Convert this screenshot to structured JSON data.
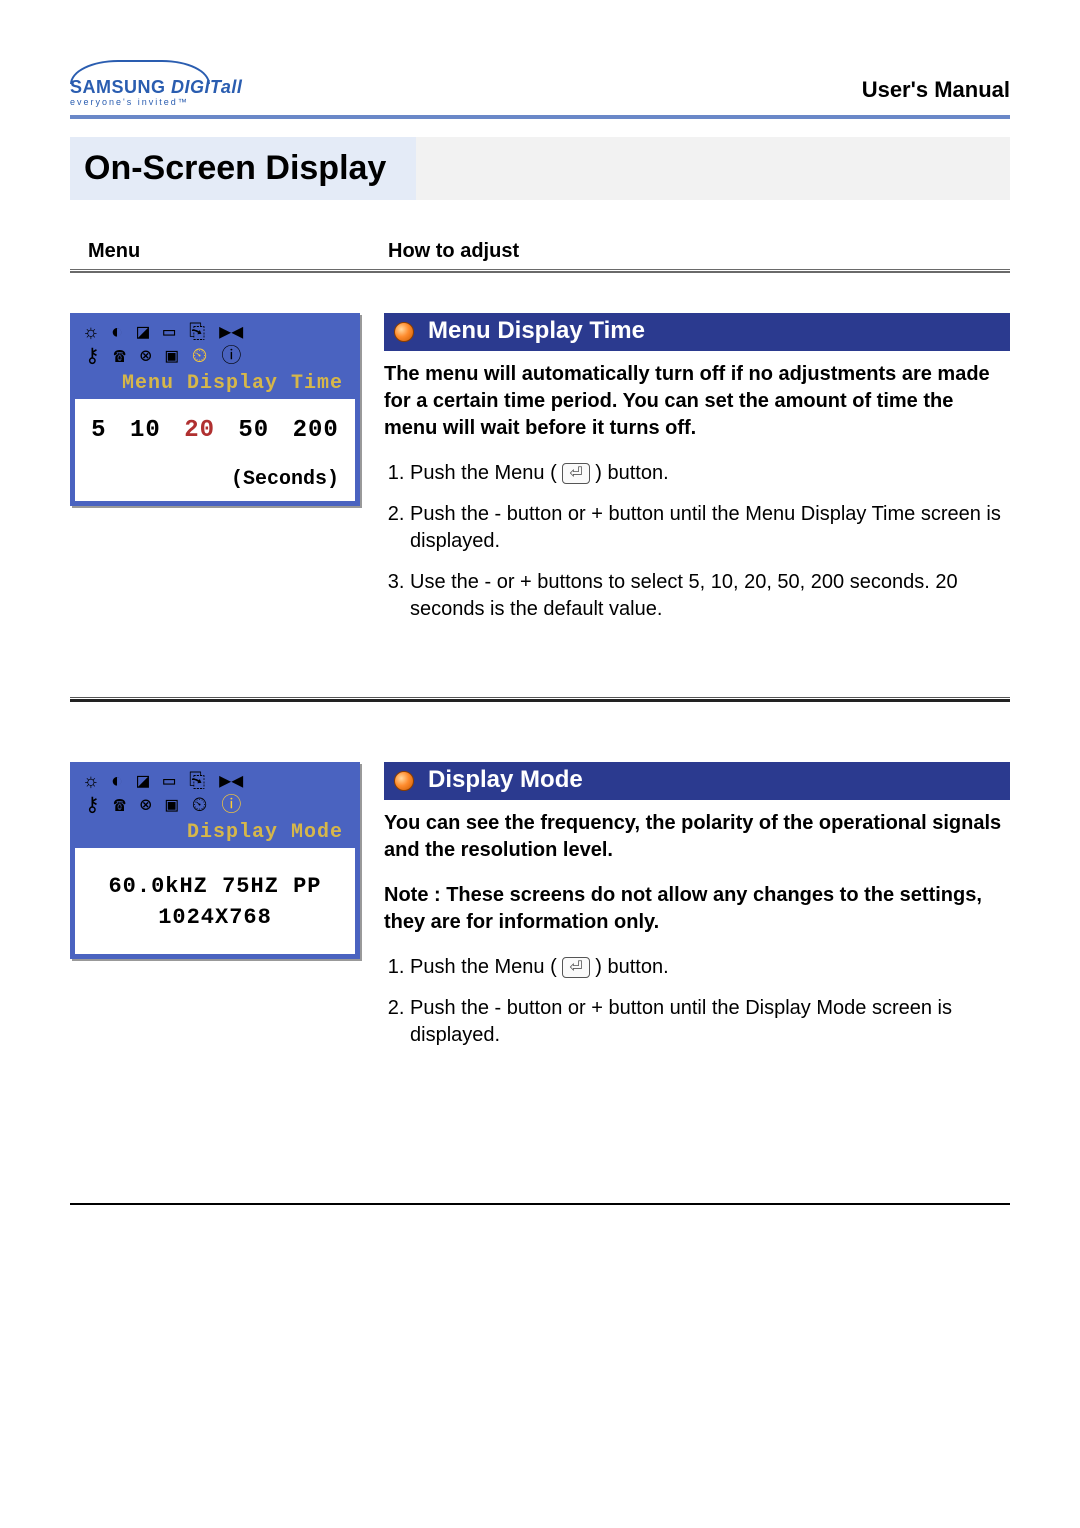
{
  "brand": {
    "name_main": "SAMSUNG ",
    "name_suffix": "DIGITall",
    "tagline": "everyone's invited™"
  },
  "manual_label": "User's Manual",
  "page_title": "On-Screen Display",
  "column_headers": {
    "menu": "Menu",
    "howto": "How to adjust"
  },
  "colors": {
    "accent_blue": "#2b3a8f",
    "osd_blue": "#4a63c0",
    "osd_title": "#d6b74a",
    "selected_icon": "#ffcc33",
    "value_highlight": "#b03030",
    "header_line": "#6a88c8",
    "title_bg": "#e4ebf7",
    "page_title_strip": "#f2f2f2"
  },
  "osd_icons_row1": [
    "☼",
    "◐",
    "◪",
    "▭",
    "⎘",
    "▶◀"
  ],
  "osd_icons_row2": [
    "⚷",
    "☎",
    "⊗",
    "▣",
    "⏲",
    "ⓘ"
  ],
  "section1": {
    "osd": {
      "title": "Menu Display Time",
      "selected_icon_index_row2": 4,
      "values": [
        "5",
        "10",
        "20",
        "50",
        "200"
      ],
      "current_value": "20",
      "unit_label": "(Seconds)"
    },
    "heading": "Menu Display Time",
    "lead": "The menu will automatically turn off if no adjustments are made for a certain time period.\nYou can set the amount of time the menu will wait before it turns off.",
    "steps": [
      "Push the Menu ( ⏎ ) button.",
      "Push the - button or + button until the Menu Display Time screen is displayed.",
      "Use the - or + buttons to select 5, 10, 20, 50, 200 seconds. 20 seconds is the default value."
    ]
  },
  "section2": {
    "osd": {
      "title": "Display Mode",
      "selected_icon_index_row2": 5,
      "info_line1": "60.0kHZ 75HZ PP",
      "info_line2": "1024X768"
    },
    "heading": "Display Mode",
    "lead": "You can see the frequency, the polarity of the operational signals and the resolution level.",
    "note": "Note :  These screens do not allow any changes to the settings, they are for information only.",
    "steps": [
      "Push the Menu ( ⏎ ) button.",
      "Push the - button or + button until the Display Mode screen is displayed."
    ]
  }
}
